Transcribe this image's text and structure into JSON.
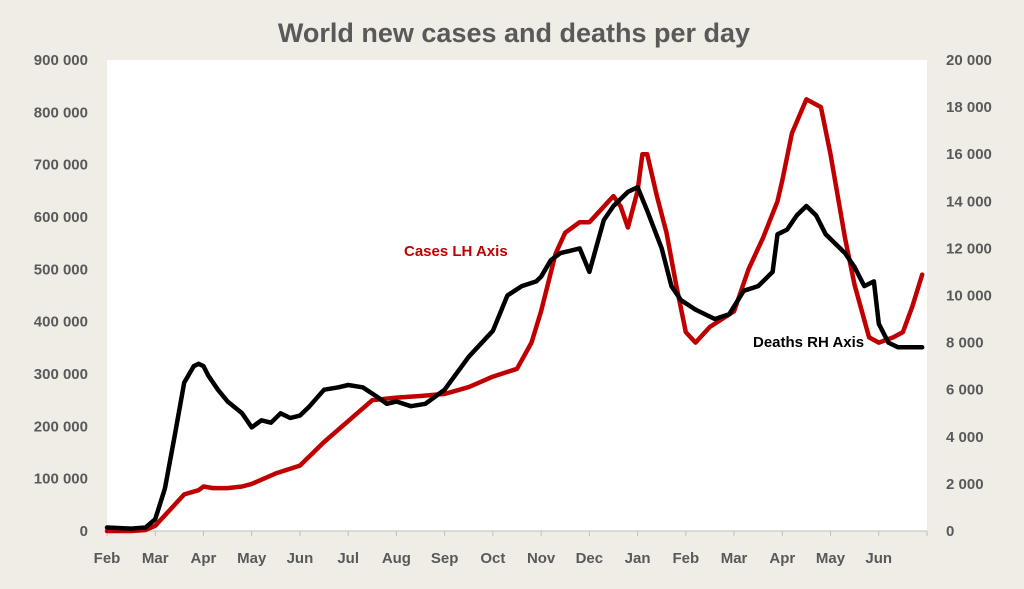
{
  "chart_data": {
    "type": "line",
    "title": "World new cases and deaths per day",
    "x_tick_labels": [
      "Feb",
      "Mar",
      "Apr",
      "May",
      "Jun",
      "Jul",
      "Aug",
      "Sep",
      "Oct",
      "Nov",
      "Dec",
      "Jan",
      "Feb",
      "Mar",
      "Apr",
      "May",
      "Jun"
    ],
    "y_left": {
      "range": [
        0,
        900000
      ],
      "ticks": [
        "0",
        "100 000",
        "200 000",
        "300 000",
        "400 000",
        "500 000",
        "600 000",
        "700 000",
        "800 000",
        "900 000"
      ]
    },
    "y_right": {
      "range": [
        0,
        20000
      ],
      "ticks": [
        "0",
        "2 000",
        "4 000",
        "6 000",
        "8 000",
        "10 000",
        "12 000",
        "14 000",
        "16 000",
        "18 000",
        "20 000"
      ]
    },
    "grid": false,
    "series": [
      {
        "name": "Cases LH Axis",
        "axis": "left",
        "color": "#c00000",
        "x": [
          0,
          0.5,
          0.8,
          1.0,
          1.3,
          1.6,
          1.9,
          2.0,
          2.2,
          2.5,
          2.8,
          3.0,
          3.5,
          4.0,
          4.5,
          5.0,
          5.5,
          6.0,
          6.5,
          7.0,
          7.5,
          8.0,
          8.5,
          8.8,
          9.0,
          9.3,
          9.5,
          9.8,
          10.0,
          10.2,
          10.4,
          10.5,
          10.65,
          10.8,
          11.0,
          11.1,
          11.2,
          11.4,
          11.6,
          11.8,
          12.0,
          12.2,
          12.5,
          13.0,
          13.3,
          13.6,
          13.9,
          14.0,
          14.2,
          14.5,
          14.8,
          15.0,
          15.3,
          15.5,
          15.8,
          16.0,
          16.3,
          16.5,
          16.7,
          16.9
        ],
        "values": [
          0,
          0,
          2000,
          10000,
          40000,
          70000,
          78000,
          85000,
          82000,
          82000,
          85000,
          90000,
          110000,
          125000,
          170000,
          210000,
          250000,
          255000,
          258000,
          262000,
          275000,
          295000,
          310000,
          360000,
          420000,
          530000,
          570000,
          590000,
          590000,
          610000,
          630000,
          640000,
          620000,
          580000,
          650000,
          720000,
          720000,
          640000,
          570000,
          470000,
          380000,
          360000,
          390000,
          420000,
          500000,
          560000,
          630000,
          670000,
          760000,
          825000,
          810000,
          720000,
          560000,
          470000,
          370000,
          360000,
          370000,
          380000,
          430000,
          490000
        ]
      },
      {
        "name": "Deaths RH Axis",
        "axis": "right",
        "color": "#000000",
        "x": [
          0,
          0.5,
          0.8,
          1.0,
          1.2,
          1.4,
          1.6,
          1.8,
          1.9,
          2.0,
          2.1,
          2.3,
          2.5,
          2.8,
          3.0,
          3.2,
          3.4,
          3.6,
          3.8,
          4.0,
          4.2,
          4.5,
          4.8,
          5.0,
          5.3,
          5.6,
          5.8,
          6.0,
          6.3,
          6.6,
          7.0,
          7.5,
          8.0,
          8.3,
          8.6,
          8.9,
          9.0,
          9.2,
          9.4,
          9.6,
          9.8,
          10.0,
          10.3,
          10.5,
          10.8,
          11.0,
          11.2,
          11.5,
          11.7,
          11.9,
          12.2,
          12.6,
          12.9,
          13.2,
          13.5,
          13.8,
          13.9,
          14.1,
          14.3,
          14.5,
          14.7,
          14.9,
          15.1,
          15.3,
          15.5,
          15.7,
          15.9,
          16.0,
          16.2,
          16.4,
          16.6,
          16.9
        ],
        "values": [
          150,
          100,
          150,
          500,
          1800,
          4000,
          6300,
          7000,
          7100,
          7000,
          6600,
          6000,
          5500,
          5000,
          4400,
          4700,
          4600,
          5000,
          4800,
          4900,
          5300,
          6000,
          6100,
          6200,
          6100,
          5700,
          5400,
          5500,
          5300,
          5400,
          6000,
          7400,
          8500,
          10000,
          10400,
          10600,
          10800,
          11500,
          11800,
          11900,
          12000,
          11000,
          13200,
          13800,
          14400,
          14600,
          13600,
          12000,
          10400,
          9800,
          9400,
          9000,
          9200,
          10200,
          10400,
          11000,
          12600,
          12800,
          13400,
          13800,
          13400,
          12600,
          12200,
          11800,
          11200,
          10400,
          10600,
          8800,
          8000,
          7800,
          7800,
          7800
        ]
      }
    ],
    "annotations": [
      {
        "text": "Cases LH Axis",
        "color": "#c00000"
      },
      {
        "text": "Deaths RH Axis",
        "color": "#000000"
      }
    ]
  }
}
